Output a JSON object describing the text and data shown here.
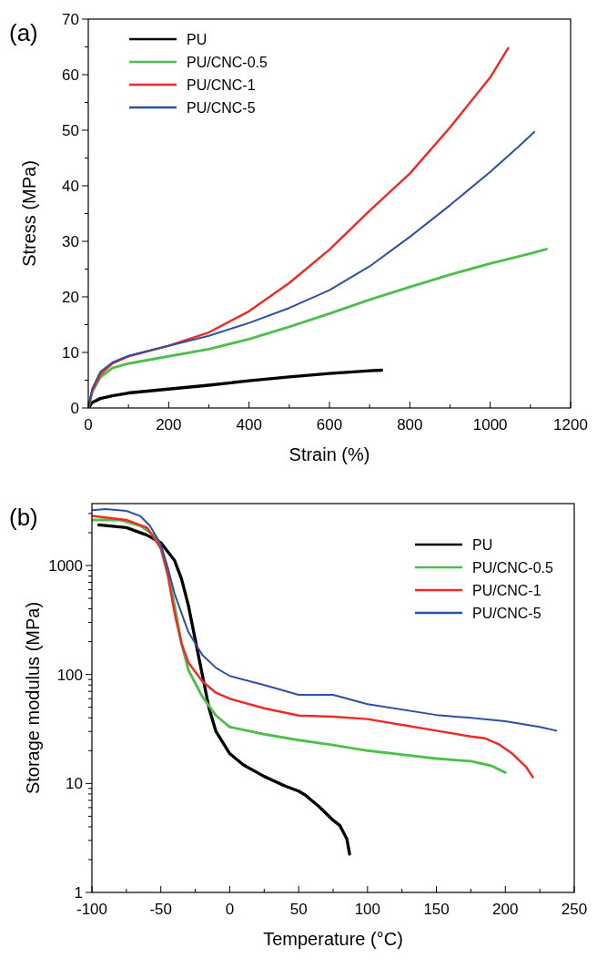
{
  "chart_data": [
    {
      "type": "line",
      "annotations": [
        "(a)"
      ],
      "xlabel": "Strain (%)",
      "ylabel": "Stress (MPa)",
      "legend": "top left",
      "xlim": [
        0,
        1200
      ],
      "ylim": [
        0,
        70
      ],
      "xticks": [
        0,
        {
          "value": 100,
          "label": null
        },
        200,
        {
          "value": 300,
          "label": null
        },
        400,
        {
          "value": 500,
          "label": null
        },
        600,
        {
          "value": 700,
          "label": null
        },
        800,
        {
          "value": 900,
          "label": null
        },
        1000,
        {
          "value": 1100,
          "label": null
        },
        1200
      ],
      "yticks": [
        0,
        {
          "value": 5,
          "label": null
        },
        10,
        {
          "value": 15,
          "label": null
        },
        20,
        {
          "value": 25,
          "label": null
        },
        30,
        {
          "value": 35,
          "label": null
        },
        40,
        {
          "value": 45,
          "label": null
        },
        50,
        {
          "value": 55,
          "label": null
        },
        60,
        {
          "value": 65,
          "label": null
        },
        70
      ],
      "series": [
        {
          "name": "PU",
          "color": "#000000",
          "x": [
            0,
            10,
            30,
            60,
            100,
            200,
            300,
            400,
            500,
            600,
            700,
            730
          ],
          "values": [
            0,
            1,
            1.7,
            2.2,
            2.7,
            3.4,
            4.1,
            4.9,
            5.6,
            6.2,
            6.7,
            6.8
          ]
        },
        {
          "name": "PU/CNC-0.5",
          "color": "#4ec04a",
          "x": [
            0,
            10,
            30,
            60,
            100,
            200,
            300,
            400,
            500,
            600,
            700,
            800,
            900,
            1000,
            1100,
            1140
          ],
          "values": [
            0,
            3,
            5.5,
            7.2,
            8,
            9.3,
            10.6,
            12.4,
            14.6,
            17,
            19.5,
            21.8,
            24,
            26,
            27.8,
            28.6
          ]
        },
        {
          "name": "PU/CNC-1",
          "color": "#ee2a24",
          "x": [
            0,
            10,
            30,
            60,
            100,
            200,
            300,
            400,
            500,
            600,
            700,
            800,
            900,
            1000,
            1045
          ],
          "values": [
            0,
            3,
            6,
            8,
            9.3,
            11.2,
            13.6,
            17.4,
            22.5,
            28.5,
            35.5,
            42.2,
            50.5,
            59.5,
            64.8
          ]
        },
        {
          "name": "PU/CNC-5",
          "color": "#2e4fa3",
          "x": [
            0,
            10,
            30,
            60,
            100,
            200,
            300,
            400,
            500,
            600,
            700,
            800,
            900,
            1000,
            1070,
            1110
          ],
          "values": [
            0,
            3.5,
            6.5,
            8.2,
            9.4,
            11.2,
            13,
            15.3,
            18,
            21.2,
            25.5,
            30.8,
            36.5,
            42.5,
            47,
            49.7
          ]
        }
      ]
    },
    {
      "type": "line",
      "annotations": [
        "(b)"
      ],
      "xlabel": "Temperature (°C)",
      "ylabel": "Storage modulus (MPa)",
      "legend": "top right",
      "log": "y",
      "xlim": [
        -100,
        250
      ],
      "ylim": [
        1,
        3700
      ],
      "xticks": [
        -100,
        {
          "value": -75,
          "label": null
        },
        -50,
        {
          "value": -25,
          "label": null
        },
        0,
        {
          "value": 25,
          "label": null
        },
        50,
        {
          "value": 75,
          "label": null
        },
        100,
        {
          "value": 125,
          "label": null
        },
        150,
        {
          "value": 175,
          "label": null
        },
        200,
        {
          "value": 225,
          "label": null
        },
        250
      ],
      "yticks": [
        1,
        {
          "value": 2,
          "label": null
        },
        {
          "value": 3,
          "label": null
        },
        {
          "value": 4,
          "label": null
        },
        {
          "value": 5,
          "label": null
        },
        {
          "value": 6,
          "label": null
        },
        {
          "value": 7,
          "label": null
        },
        {
          "value": 8,
          "label": null
        },
        {
          "value": 9,
          "label": null
        },
        10,
        {
          "value": 20,
          "label": null
        },
        {
          "value": 30,
          "label": null
        },
        {
          "value": 40,
          "label": null
        },
        {
          "value": 50,
          "label": null
        },
        {
          "value": 60,
          "label": null
        },
        {
          "value": 70,
          "label": null
        },
        {
          "value": 80,
          "label": null
        },
        {
          "value": 90,
          "label": null
        },
        100,
        {
          "value": 200,
          "label": null
        },
        {
          "value": 300,
          "label": null
        },
        {
          "value": 400,
          "label": null
        },
        {
          "value": 500,
          "label": null
        },
        {
          "value": 600,
          "label": null
        },
        {
          "value": 700,
          "label": null
        },
        {
          "value": 800,
          "label": null
        },
        {
          "value": 900,
          "label": null
        },
        1000,
        {
          "value": 2000,
          "label": null
        },
        {
          "value": 3000,
          "label": null
        }
      ],
      "series": [
        {
          "name": "PU",
          "color": "#000000",
          "x": [
            -95,
            -75,
            -60,
            -50,
            -40,
            -35,
            -30,
            -25,
            -20,
            -15,
            -10,
            0,
            10,
            25,
            40,
            50,
            55,
            65,
            75,
            80,
            85,
            87
          ],
          "values": [
            2360,
            2230,
            1900,
            1620,
            1110,
            755,
            430,
            208,
            101,
            49,
            30,
            18.8,
            14.8,
            11.6,
            9.5,
            8.5,
            7.8,
            6.1,
            4.6,
            4.1,
            3.1,
            2.25
          ]
        },
        {
          "name": "PU/CNC-0.5",
          "color": "#4ec04a",
          "x": [
            -100,
            -80,
            -65,
            -55,
            -50,
            -45,
            -40,
            -35,
            -30,
            -20,
            -10,
            0,
            25,
            50,
            75,
            100,
            125,
            150,
            175,
            190,
            200
          ],
          "values": [
            2620,
            2620,
            2320,
            1900,
            1440,
            890,
            430,
            193,
            110,
            63,
            42,
            33,
            28.3,
            25,
            22.5,
            20,
            18.4,
            16.9,
            16,
            14.5,
            12.6
          ]
        },
        {
          "name": "PU/CNC-1",
          "color": "#ee2a24",
          "x": [
            -100,
            -75,
            -60,
            -50,
            -45,
            -40,
            -35,
            -30,
            -20,
            -10,
            0,
            25,
            50,
            75,
            100,
            125,
            150,
            175,
            185,
            195,
            205,
            215,
            220
          ],
          "values": [
            2850,
            2620,
            2230,
            1440,
            820,
            365,
            193,
            129,
            87,
            68,
            60,
            49,
            42,
            41,
            39,
            34.5,
            30.5,
            27,
            26,
            23,
            18.8,
            14.2,
            11.4
          ]
        },
        {
          "name": "PU/CNC-5",
          "color": "#2e4fa3",
          "x": [
            -100,
            -90,
            -75,
            -65,
            -58,
            -50,
            -45,
            -40,
            -30,
            -20,
            -10,
            0,
            25,
            50,
            75,
            100,
            150,
            175,
            200,
            225,
            237
          ],
          "values": [
            3220,
            3300,
            3170,
            2850,
            2320,
            1570,
            960,
            550,
            245,
            152,
            115,
            97,
            80,
            65,
            65,
            53.5,
            42.5,
            40,
            37.2,
            33,
            30.5
          ]
        }
      ]
    }
  ]
}
